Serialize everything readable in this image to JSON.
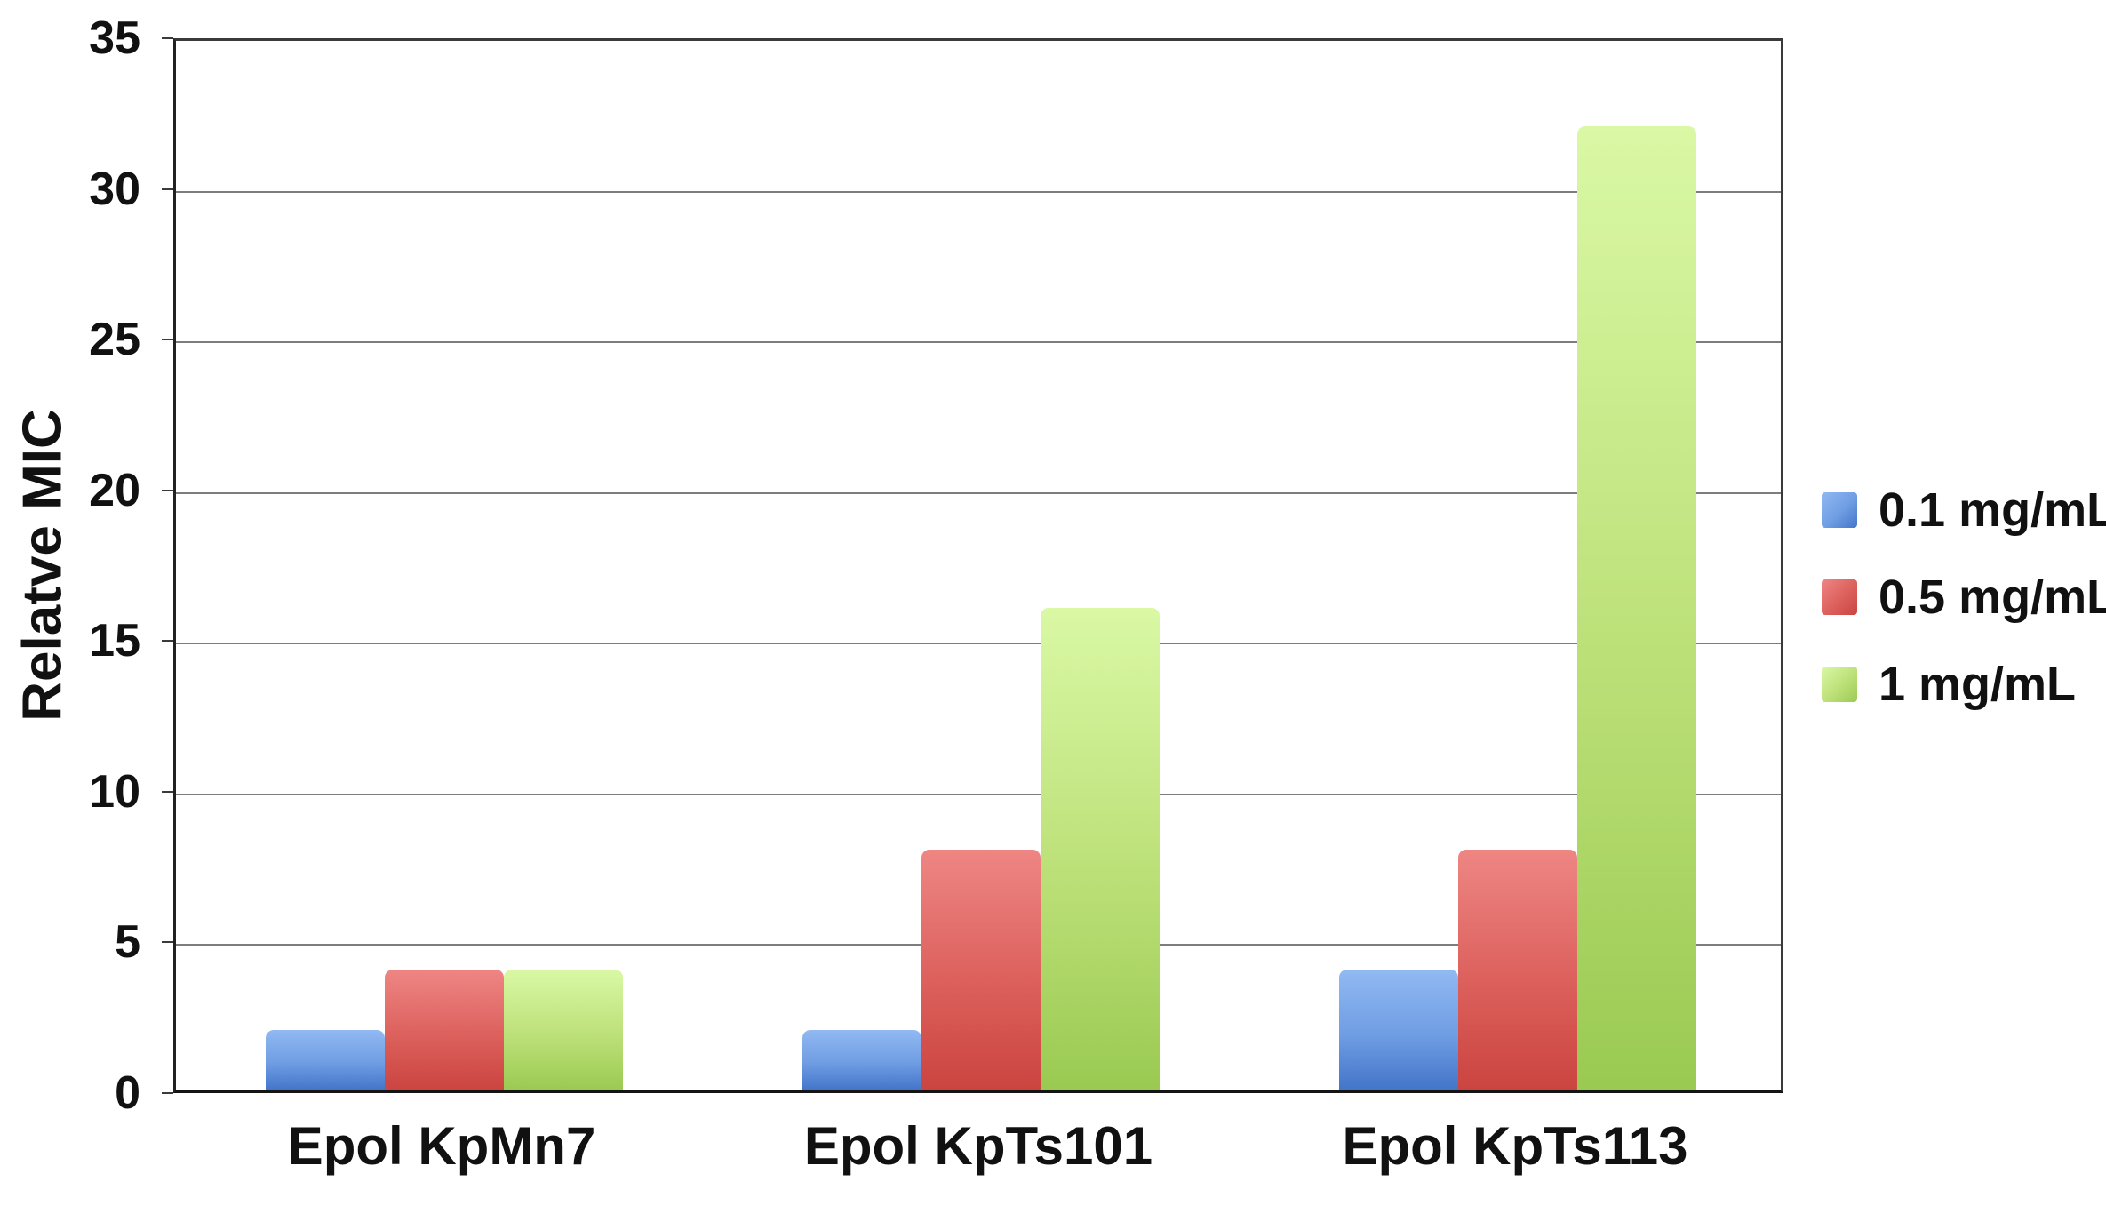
{
  "chart_data": {
    "type": "bar",
    "title": "",
    "ylabel": "Relatve MIC",
    "xlabel": "",
    "ylim": [
      0,
      35
    ],
    "ytick_step": 5,
    "yticks": [
      0,
      5,
      10,
      15,
      20,
      25,
      30,
      35
    ],
    "grid": true,
    "legend_position": "right",
    "categories": [
      "Epol KpMn7",
      "Epol KpTs101",
      "Epol KpTs113"
    ],
    "series": [
      {
        "name": "0.1 mg/mL",
        "values": [
          2,
          2,
          4
        ],
        "color_top": "#91b9f2",
        "color_mid": "#6f9de3",
        "color_bottom": "#4274c9"
      },
      {
        "name": "0.5 mg/mL",
        "values": [
          4,
          8,
          8
        ],
        "color_top": "#ee8684",
        "color_mid": "#dc605c",
        "color_bottom": "#cb4440"
      },
      {
        "name": "1 mg/mL",
        "values": [
          4,
          16,
          32
        ],
        "color_top": "#daf8a5",
        "color_mid": "#bce078",
        "color_bottom": "#9aca52"
      }
    ]
  },
  "style_colors": {
    "plot_border": "#3a3a3a",
    "gridline": "#7d7d7d",
    "text": "#111111",
    "background": "#ffffff"
  }
}
